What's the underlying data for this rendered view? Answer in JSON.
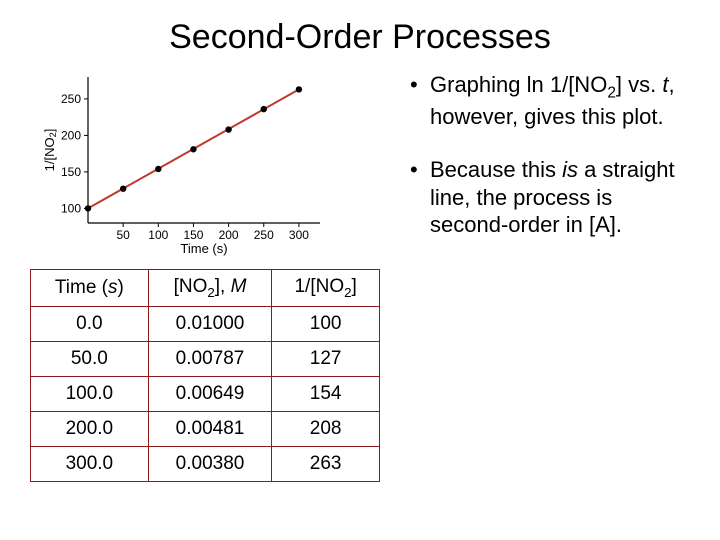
{
  "title": "Second-Order Processes",
  "bullets": {
    "b1_pre": "Graphing ln 1/[NO",
    "b1_sub": "2",
    "b1_mid": "] vs. ",
    "b1_t": "t",
    "b1_post": ", however, gives this plot.",
    "b2_pre": "Because this ",
    "b2_is": "is",
    "b2_post": " a straight line, the process is second-order in [A]."
  },
  "table": {
    "headers": {
      "time_label": "Time (",
      "time_unit": "s",
      "time_close": ")",
      "conc_label": "[NO",
      "conc_sub": "2",
      "conc_close": "], ",
      "conc_unit": "M",
      "inv_label": "1/[NO",
      "inv_sub": "2",
      "inv_close": "]"
    },
    "rows": [
      {
        "time": "0.0",
        "conc": "0.01000",
        "inv": "100"
      },
      {
        "time": "50.0",
        "conc": "0.00787",
        "inv": "127"
      },
      {
        "time": "100.0",
        "conc": "0.00649",
        "inv": "154"
      },
      {
        "time": "200.0",
        "conc": "0.00481",
        "inv": "208"
      },
      {
        "time": "300.0",
        "conc": "0.00380",
        "inv": "263"
      }
    ]
  },
  "chart": {
    "type": "scatter-with-fit-line",
    "xlabel": "Time (s)",
    "ylabel": "1/[NO2]",
    "xlim": [
      0,
      330
    ],
    "ylim": [
      80,
      280
    ],
    "xticks": [
      50,
      100,
      150,
      200,
      250,
      300
    ],
    "yticks": [
      100,
      150,
      200,
      250
    ],
    "points": [
      {
        "x": 0,
        "y": 100
      },
      {
        "x": 50,
        "y": 127
      },
      {
        "x": 100,
        "y": 154
      },
      {
        "x": 150,
        "y": 181
      },
      {
        "x": 200,
        "y": 208
      },
      {
        "x": 250,
        "y": 236
      },
      {
        "x": 300,
        "y": 263
      }
    ],
    "line_color": "#c0392b",
    "line_width": 2,
    "marker_color": "#000000",
    "marker_radius": 3.2,
    "axis_color": "#000000",
    "tick_font_size": 12,
    "label_font_size": 13,
    "background": "#ffffff"
  }
}
